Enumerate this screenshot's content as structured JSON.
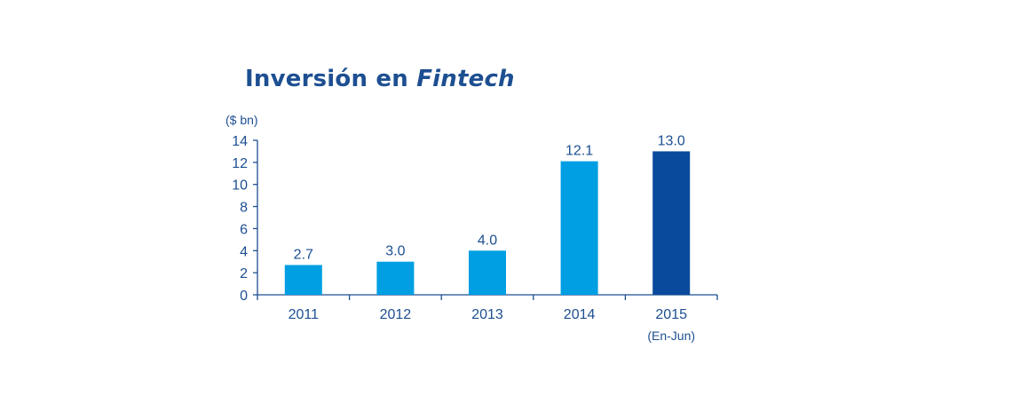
{
  "chart_data": {
    "type": "bar",
    "title_main": "Inversión en ",
    "title_em": "Fintech",
    "ylabel": "($ bn)",
    "xlabel": "",
    "ylim": [
      0,
      14
    ],
    "yticks": [
      0,
      2,
      4,
      6,
      8,
      10,
      12,
      14
    ],
    "categories": [
      "2011",
      "2012",
      "2013",
      "2014",
      "2015"
    ],
    "category_notes": [
      "",
      "",
      "",
      "",
      "(En-Jun)"
    ],
    "values": [
      2.7,
      3.0,
      4.0,
      12.1,
      13.0
    ],
    "value_labels": [
      "2.7",
      "3.0",
      "4.0",
      "12.1",
      "13.0"
    ],
    "bar_colors": [
      "#009fe3",
      "#009fe3",
      "#009fe3",
      "#009fe3",
      "#0a4a9c"
    ],
    "text_color": "#1d4f91",
    "axis_color": "#1d4f91",
    "grid": false,
    "legend": "none"
  }
}
